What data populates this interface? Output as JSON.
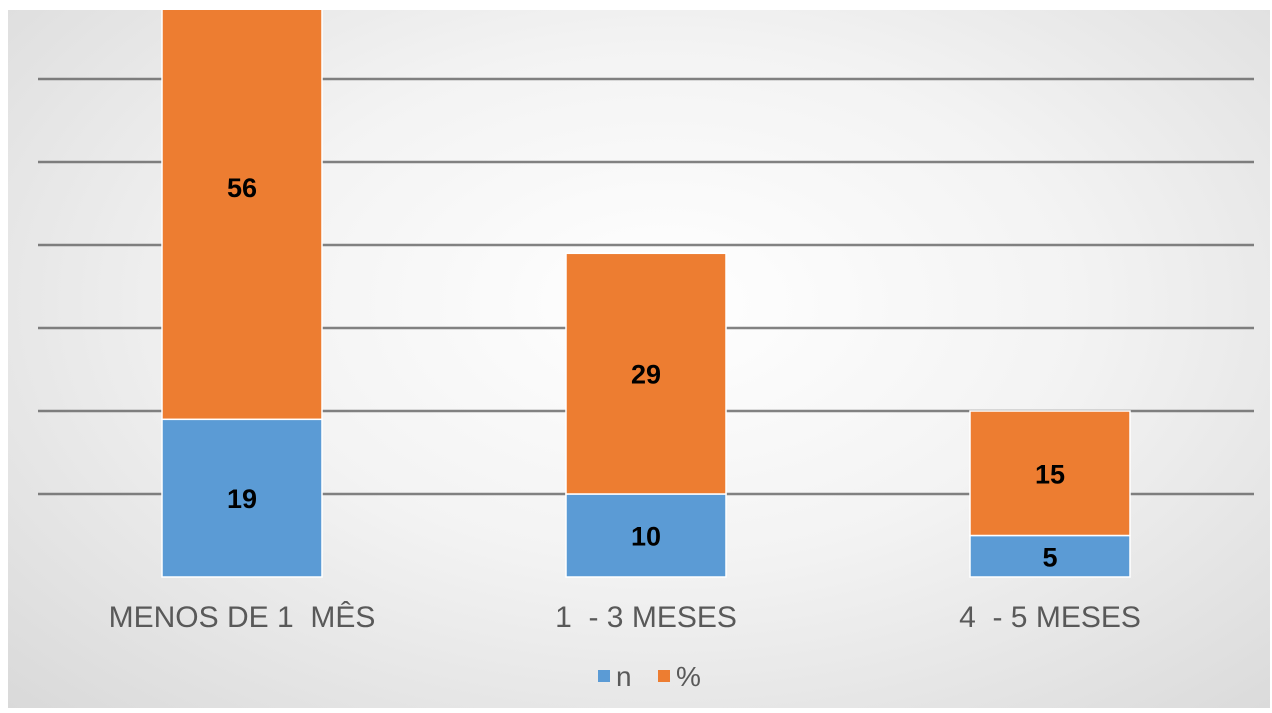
{
  "chart_data": {
    "type": "bar",
    "stacked": true,
    "categories": [
      "MENOS DE 1  MÊS",
      "1  - 3 MESES",
      "4  - 5 MESES"
    ],
    "series": [
      {
        "name": "n",
        "values": [
          19,
          10,
          5
        ],
        "color": "#5b9bd5"
      },
      {
        "name": "%",
        "values": [
          56,
          29,
          15
        ],
        "color": "#ed7d31"
      }
    ],
    "ylim": [
      0,
      80
    ],
    "grid": true,
    "legend": "bottom",
    "data_labels": true
  }
}
